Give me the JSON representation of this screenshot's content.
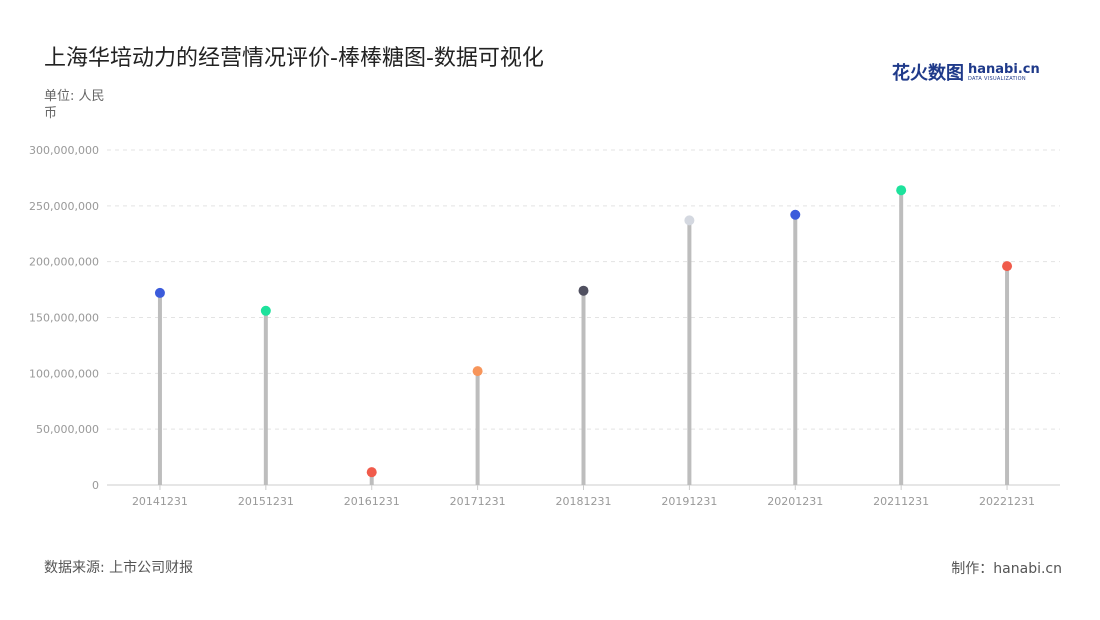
{
  "title": "上海华培动力的经营情况评价-棒棒糖图-数据可视化",
  "unit_label": "单位: 人民币",
  "source_label": "数据来源: 上市公司财报",
  "credit_label": "制作：hanabi.cn",
  "brand": {
    "cn": "花火数图",
    "en": "hanabi.cn",
    "sub": "DATA VISUALIZATION"
  },
  "chart_data": {
    "type": "lollipop",
    "categories": [
      "20141231",
      "20151231",
      "20161231",
      "20171231",
      "20181231",
      "20191231",
      "20201231",
      "20211231",
      "20221231"
    ],
    "values": [
      172000000,
      156000000,
      11500000,
      102000000,
      174000000,
      237000000,
      242000000,
      264000000,
      196000000
    ],
    "point_colors": [
      "#3b5bdb",
      "#1de29c",
      "#f05b4b",
      "#f7955a",
      "#505060",
      "#d4d8e0",
      "#3b5bdb",
      "#1de29c",
      "#f05b4b"
    ],
    "stem_color": "#bdbdbd",
    "ylim": [
      0,
      300000000
    ],
    "yticks": [
      0,
      50000000,
      100000000,
      150000000,
      200000000,
      250000000,
      300000000
    ],
    "ytick_labels": [
      "0",
      "50,000,000",
      "100,000,000",
      "150,000,000",
      "200,000,000",
      "250,000,000",
      "300,000,000"
    ],
    "grid": true
  }
}
